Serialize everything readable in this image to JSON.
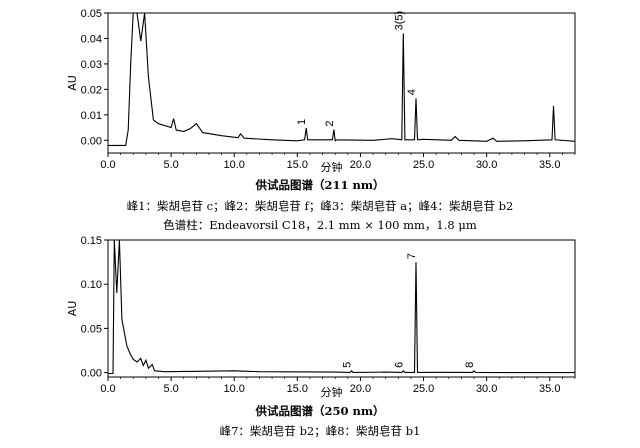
{
  "chart_data": [
    {
      "type": "line",
      "title": "",
      "xlabel": "分钟",
      "ylabel": "AU",
      "xlim": [
        0,
        37
      ],
      "ylim": [
        -0.005,
        0.05
      ],
      "xticks": [
        "0.0",
        "5.0",
        "10.0",
        "15.0",
        "20.0",
        "25.0",
        "30.0",
        "35.0"
      ],
      "xtick_values": [
        0,
        5,
        10,
        15,
        20,
        25,
        30,
        35
      ],
      "yticks": [
        "0.00",
        "0.01",
        "0.02",
        "0.03",
        "0.04",
        "0.05"
      ],
      "ytick_values": [
        0,
        0.01,
        0.02,
        0.03,
        0.04,
        0.05
      ],
      "peaks": [
        {
          "label": "1",
          "x": 15.7,
          "y": 0.0048
        },
        {
          "label": "2",
          "x": 17.9,
          "y": 0.0042
        },
        {
          "label": "3(5)",
          "x": 23.4,
          "y": 0.042
        },
        {
          "label": "4",
          "x": 24.4,
          "y": 0.0165
        },
        {
          "label": "",
          "x": 35.3,
          "y": 0.0135
        }
      ],
      "baseline": [
        [
          0.0,
          -0.002
        ],
        [
          1.4,
          -0.002
        ],
        [
          1.6,
          0.004
        ],
        [
          1.8,
          0.03
        ],
        [
          2.0,
          0.05
        ],
        [
          2.3,
          0.05
        ],
        [
          2.6,
          0.039
        ],
        [
          2.9,
          0.05
        ],
        [
          3.2,
          0.025
        ],
        [
          3.6,
          0.008
        ],
        [
          4.0,
          0.0065
        ],
        [
          5.0,
          0.005
        ],
        [
          5.2,
          0.0085
        ],
        [
          5.4,
          0.004
        ],
        [
          6.0,
          0.0035
        ],
        [
          6.5,
          0.0045
        ],
        [
          7.0,
          0.0065
        ],
        [
          7.5,
          0.003
        ],
        [
          9.0,
          0.0018
        ],
        [
          10.3,
          0.001
        ],
        [
          10.5,
          0.0025
        ],
        [
          10.8,
          0.0008
        ],
        [
          13.0,
          0.0002
        ],
        [
          15.0,
          -0.0002
        ],
        [
          18.0,
          -0.0004
        ],
        [
          21.0,
          0.0
        ],
        [
          22.5,
          0.0006
        ],
        [
          25.0,
          0.0004
        ],
        [
          27.2,
          0.0
        ],
        [
          27.5,
          0.0015
        ],
        [
          27.8,
          0.0
        ],
        [
          30.0,
          -0.0004
        ],
        [
          30.5,
          0.0008
        ],
        [
          30.8,
          -0.0004
        ],
        [
          33.0,
          -0.0002
        ],
        [
          37.0,
          -0.0004
        ]
      ],
      "caption_title": "供试品图谱（211 nm）",
      "caption_lines": [
        "峰1：柴胡皂苷 c；峰2：柴胡皂苷 f；峰3：柴胡皂苷 a；峰4：柴胡皂苷 b2",
        "色谱柱：Endeavorsil C18，2.1 mm × 100 mm，1.8 μm"
      ]
    },
    {
      "type": "line",
      "title": "",
      "xlabel": "分钟",
      "ylabel": "AU",
      "xlim": [
        0,
        37
      ],
      "ylim": [
        -0.005,
        0.15
      ],
      "xticks": [
        "0.0",
        "5.0",
        "10.0",
        "15.0",
        "20.0",
        "25.0",
        "30.0",
        "35.0"
      ],
      "xtick_values": [
        0,
        5,
        10,
        15,
        20,
        25,
        30,
        35
      ],
      "yticks": [
        "0.00",
        "0.05",
        "0.10",
        "0.15"
      ],
      "ytick_values": [
        0,
        0.05,
        0.1,
        0.15
      ],
      "peaks": [
        {
          "label": "5",
          "x": 19.3,
          "y": 0.002
        },
        {
          "label": "6",
          "x": 23.4,
          "y": 0.002
        },
        {
          "label": "7",
          "x": 24.4,
          "y": 0.125
        },
        {
          "label": "8",
          "x": 29.0,
          "y": 0.002
        }
      ],
      "baseline": [
        [
          0.0,
          -0.001
        ],
        [
          0.4,
          -0.001
        ],
        [
          0.5,
          0.15
        ],
        [
          0.7,
          0.09
        ],
        [
          0.9,
          0.15
        ],
        [
          1.1,
          0.06
        ],
        [
          1.3,
          0.045
        ],
        [
          1.5,
          0.03
        ],
        [
          1.8,
          0.02
        ],
        [
          2.0,
          0.015
        ],
        [
          2.3,
          0.012
        ],
        [
          2.6,
          0.016
        ],
        [
          2.8,
          0.008
        ],
        [
          3.0,
          0.014
        ],
        [
          3.2,
          0.005
        ],
        [
          3.5,
          0.009
        ],
        [
          3.7,
          0.002
        ],
        [
          4.5,
          0.001
        ],
        [
          7.0,
          0.0015
        ],
        [
          10.0,
          0.002
        ],
        [
          12.0,
          0.001
        ],
        [
          18.0,
          0.0005
        ],
        [
          22.0,
          0.0005
        ],
        [
          26.0,
          0.0003
        ],
        [
          32.0,
          0.0
        ],
        [
          37.0,
          0.0
        ]
      ],
      "caption_title": "供试品图谱（250 nm）",
      "caption_lines": [
        "峰7：柴胡皂苷 b2；峰8：柴胡皂苷 b1"
      ]
    }
  ]
}
